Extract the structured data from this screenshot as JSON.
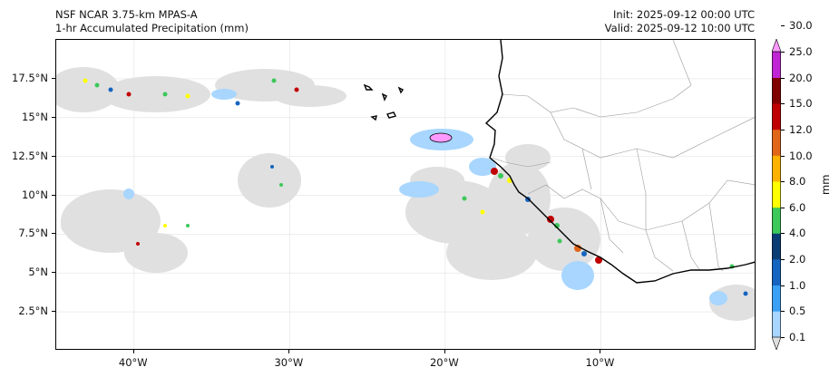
{
  "header": {
    "model_title": "NSF NCAR 3.75-km MPAS-A",
    "field_title": "1-hr Accumulated Precipitation (mm)",
    "init_text": "Init: 2025-09-12 00:00 UTC",
    "valid_text": "Valid: 2025-09-12 10:00 UTC"
  },
  "map": {
    "lon_range": [
      -45,
      0
    ],
    "lat_range": [
      0,
      20
    ],
    "lat_ticks": [
      {
        "value": 17.5,
        "label": "17.5°N"
      },
      {
        "value": 15,
        "label": "15°N"
      },
      {
        "value": 12.5,
        "label": "12.5°N"
      },
      {
        "value": 10,
        "label": "10°N"
      },
      {
        "value": 7.5,
        "label": "7.5°N"
      },
      {
        "value": 5,
        "label": "5°N"
      },
      {
        "value": 2.5,
        "label": "2.5°N"
      }
    ],
    "lon_ticks": [
      {
        "value": -40,
        "label": "40°W"
      },
      {
        "value": -30,
        "label": "30°W"
      },
      {
        "value": -20,
        "label": "20°W"
      },
      {
        "value": -10,
        "label": "10°W"
      }
    ],
    "colors": {
      "coastline": "#000000",
      "borders": "#9a9a9a",
      "gridlines": "#e8e8e8"
    }
  },
  "colorbar": {
    "units": "mm",
    "levels": [
      "0.1",
      "0.5",
      "1.0",
      "2.0",
      "4.0",
      "6.0",
      "8.0",
      "10.0",
      "12.0",
      "15.0",
      "20.0",
      "25.0",
      "30.0"
    ],
    "colors": [
      "#e0e0e0",
      "#a8d6ff",
      "#3aa0f5",
      "#1565c0",
      "#0b3d75",
      "#3cc85a",
      "#ffff00",
      "#ffb300",
      "#e0661a",
      "#c00000",
      "#800000",
      "#c026d3",
      "#ff99ff"
    ]
  }
}
